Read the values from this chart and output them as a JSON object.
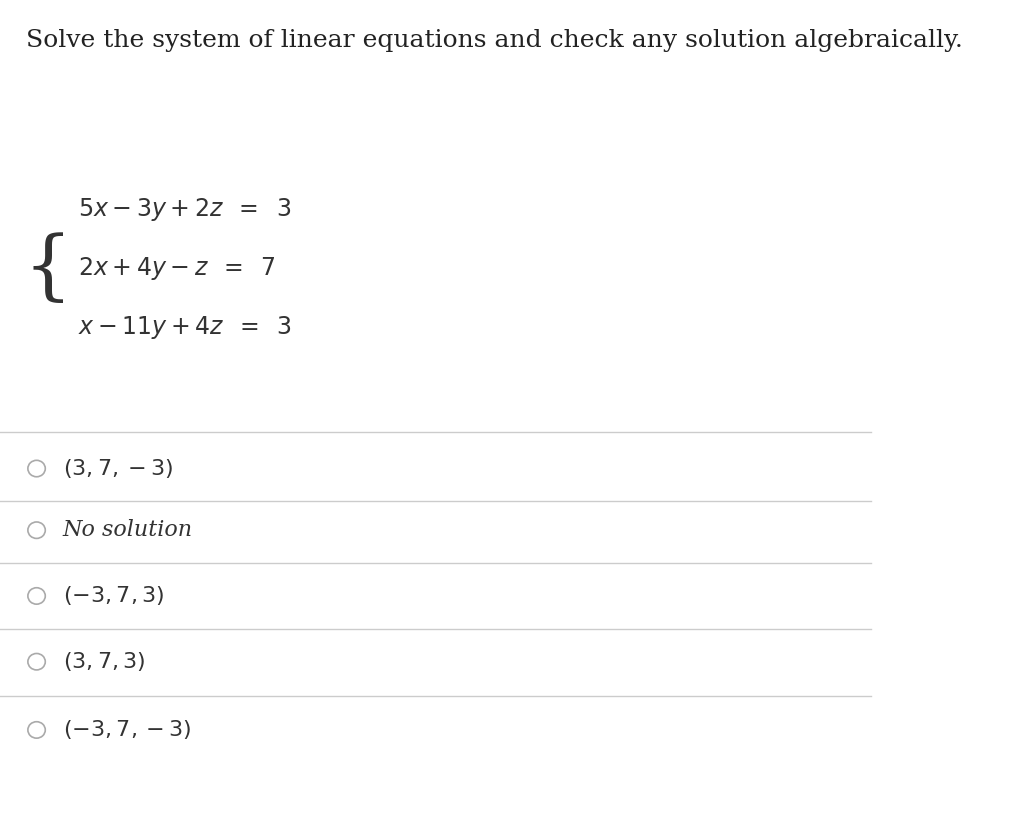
{
  "title": "Solve the system of linear equations and check any solution algebraically.",
  "title_fontsize": 18,
  "title_color": "#222222",
  "background_color": "#ffffff",
  "options": [
    "(3, 7, −3)",
    "No solution",
    "(−3, 7, 3)",
    "(3, 7, 3)",
    "(−3, 7, −3)"
  ],
  "option_fontsize": 16,
  "equation_fontsize": 17,
  "divider_color": "#cccccc",
  "circle_color": "#aaaaaa"
}
